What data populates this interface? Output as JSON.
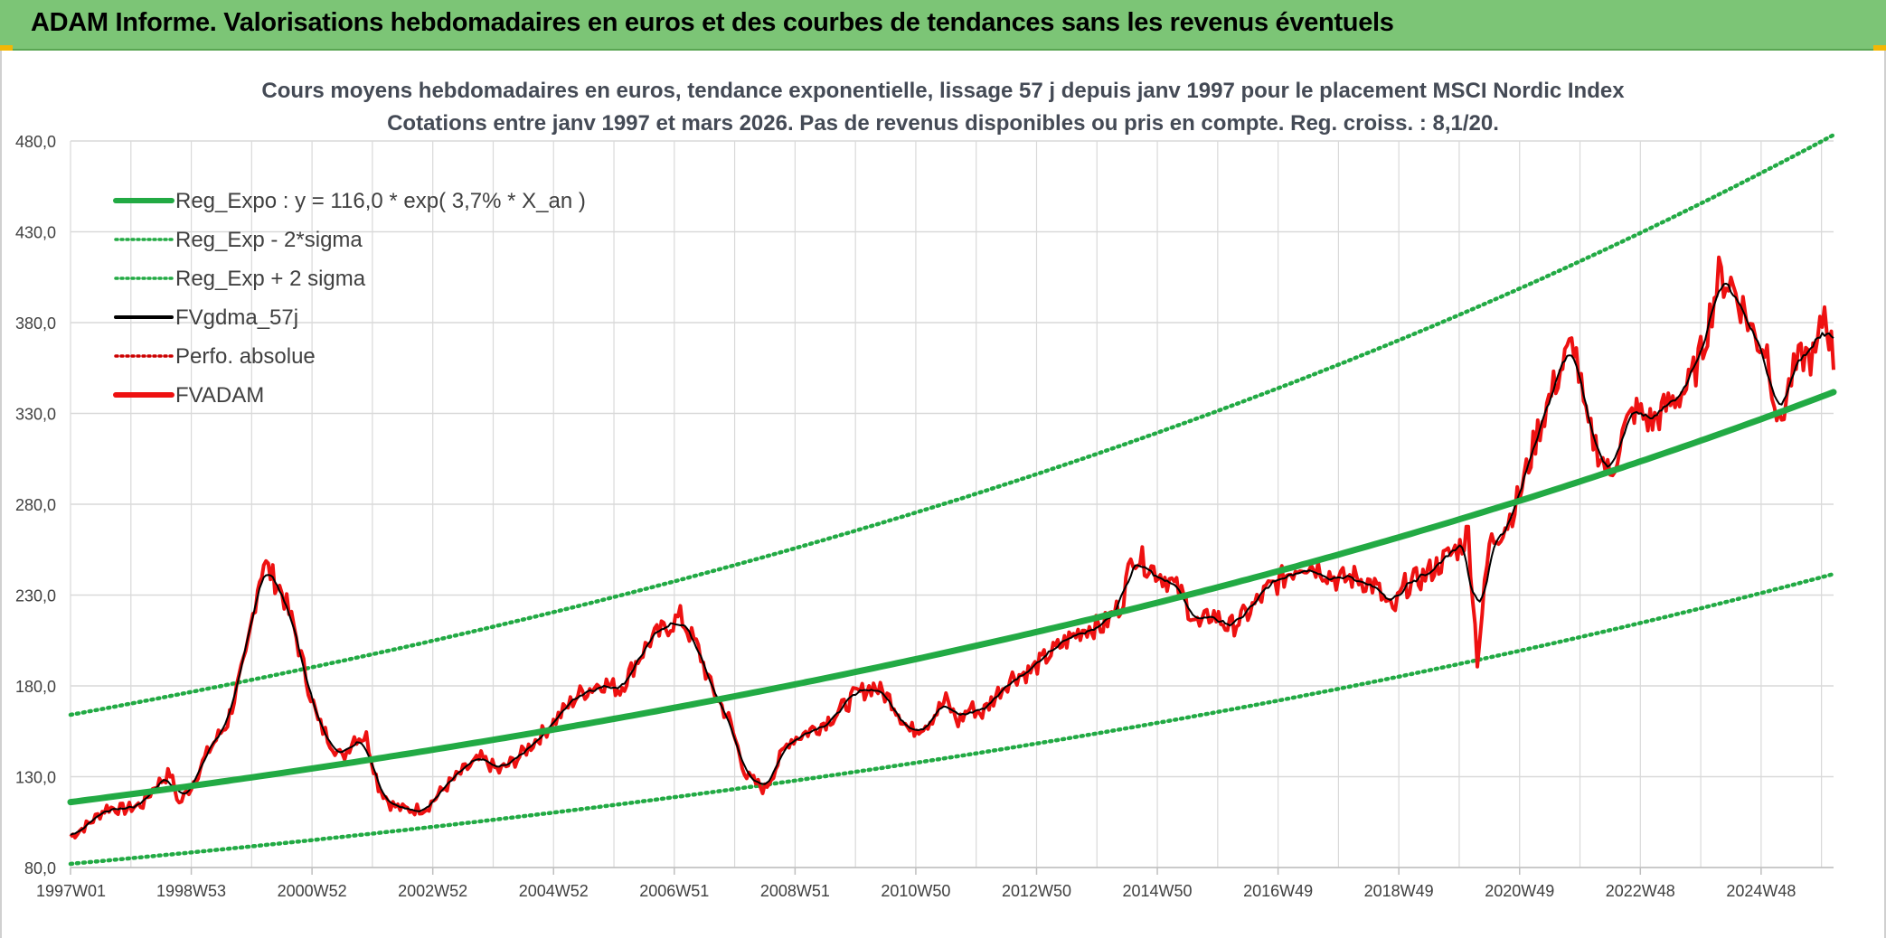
{
  "banner": {
    "title": "ADAM Informe. Valorisations hebdomadaires en euros et des courbes de tendances sans les revenus éventuels"
  },
  "chart_data": {
    "type": "line",
    "title_line1": "Cours moyens hebdomadaires en euros, tendance exponentielle, lissage 57 j depuis janv 1997 pour le placement MSCI Nordic Index",
    "title_line2": "Cotations entre janv 1997 et mars 2026. Pas de revenus disponibles ou pris en compte. Reg. croiss. : 8,1/20.",
    "xlabel": "",
    "ylabel": "",
    "ylim": [
      80,
      480
    ],
    "xlim": [
      1997.0,
      2026.2
    ],
    "grid": true,
    "legend_position": "top-left",
    "y_ticks": [
      "80,0",
      "130,0",
      "180,0",
      "230,0",
      "280,0",
      "330,0",
      "380,0",
      "430,0",
      "480,0"
    ],
    "y_tick_values": [
      80,
      130,
      180,
      230,
      280,
      330,
      380,
      430,
      480
    ],
    "x_ticks": [
      "1997W01",
      "1998W53",
      "2000W52",
      "2002W52",
      "2004W52",
      "2006W51",
      "2008W51",
      "2010W50",
      "2012W50",
      "2014W50",
      "2016W49",
      "2018W49",
      "2020W49",
      "2022W48",
      "2024W48"
    ],
    "x_tick_years": [
      1997.0,
      1999.0,
      2001.0,
      2003.0,
      2005.0,
      2007.0,
      2009.0,
      2011.0,
      2013.0,
      2015.0,
      2017.0,
      2019.0,
      2021.0,
      2023.0,
      2025.0
    ],
    "regression": {
      "a": 116.0,
      "rate": 0.037,
      "sigma_ratio": 0.707
    },
    "series": [
      {
        "name": "Reg_Expo : y = 116,0 * exp( 3,7% *  X_an )",
        "color": "#22aa44",
        "style": "thick"
      },
      {
        "name": "Reg_Exp - 2*sigma",
        "color": "#22aa44",
        "style": "dotted"
      },
      {
        "name": "Reg_Exp + 2 sigma",
        "color": "#22aa44",
        "style": "dotted"
      },
      {
        "name": "FVgdma_57j",
        "color": "#000000",
        "style": "solid"
      },
      {
        "name": "Perfo. absolue",
        "color": "#cc0000",
        "style": "dotted"
      },
      {
        "name": "FVADAM",
        "color": "#ee1111",
        "style": "thick"
      }
    ],
    "fvadam_points": {
      "x": [
        1997.0,
        1997.3,
        1997.6,
        1997.9,
        1998.2,
        1998.4,
        1998.65,
        1998.8,
        1999.0,
        1999.3,
        1999.6,
        1999.9,
        2000.1,
        2000.2,
        2000.35,
        2000.5,
        2000.7,
        2000.9,
        2001.1,
        2001.3,
        2001.5,
        2001.7,
        2001.9,
        2002.1,
        2002.3,
        2002.5,
        2002.7,
        2002.9,
        2003.2,
        2003.5,
        2003.8,
        2004.1,
        2004.4,
        2004.7,
        2005.0,
        2005.4,
        2005.8,
        2006.1,
        2006.4,
        2006.6,
        2006.9,
        2007.1,
        2007.4,
        2007.6,
        2007.9,
        2008.2,
        2008.5,
        2008.75,
        2008.9,
        2009.1,
        2009.4,
        2009.7,
        2010.0,
        2010.3,
        2010.6,
        2010.9,
        2011.2,
        2011.5,
        2011.7,
        2011.9,
        2012.1,
        2012.4,
        2012.6,
        2012.9,
        2013.2,
        2013.5,
        2013.8,
        2014.1,
        2014.4,
        2014.6,
        2014.9,
        2015.2,
        2015.4,
        2015.7,
        2015.9,
        2016.2,
        2016.5,
        2016.8,
        2017.1,
        2017.4,
        2017.7,
        2018.0,
        2018.3,
        2018.6,
        2018.9,
        2019.1,
        2019.4,
        2019.7,
        2020.05,
        2020.15,
        2020.3,
        2020.5,
        2020.8,
        2021.0,
        2021.3,
        2021.6,
        2021.9,
        2022.1,
        2022.3,
        2022.5,
        2022.7,
        2022.9,
        2023.2,
        2023.5,
        2023.8,
        2024.0,
        2024.3,
        2024.5,
        2024.7,
        2024.9,
        2025.1,
        2025.3,
        2025.5,
        2025.7,
        2025.9,
        2026.05,
        2026.2
      ],
      "y": [
        97,
        104,
        113,
        112,
        115,
        125,
        132,
        115,
        125,
        145,
        160,
        195,
        235,
        248,
        240,
        232,
        212,
        185,
        160,
        150,
        140,
        152,
        152,
        125,
        115,
        112,
        112,
        113,
        124,
        133,
        140,
        133,
        140,
        150,
        160,
        175,
        182,
        178,
        195,
        205,
        213,
        218,
        200,
        180,
        162,
        130,
        123,
        140,
        150,
        153,
        158,
        165,
        175,
        180,
        172,
        155,
        160,
        172,
        160,
        168,
        165,
        178,
        185,
        188,
        197,
        205,
        212,
        213,
        225,
        253,
        245,
        238,
        230,
        212,
        220,
        212,
        220,
        232,
        240,
        248,
        245,
        238,
        240,
        235,
        220,
        235,
        240,
        248,
        258,
        265,
        195,
        258,
        270,
        285,
        320,
        348,
        370,
        325,
        310,
        295,
        318,
        332,
        325,
        336,
        345,
        362,
        405,
        402,
        388,
        372,
        365,
        322,
        350,
        362,
        360,
        388,
        360
      ]
    }
  }
}
